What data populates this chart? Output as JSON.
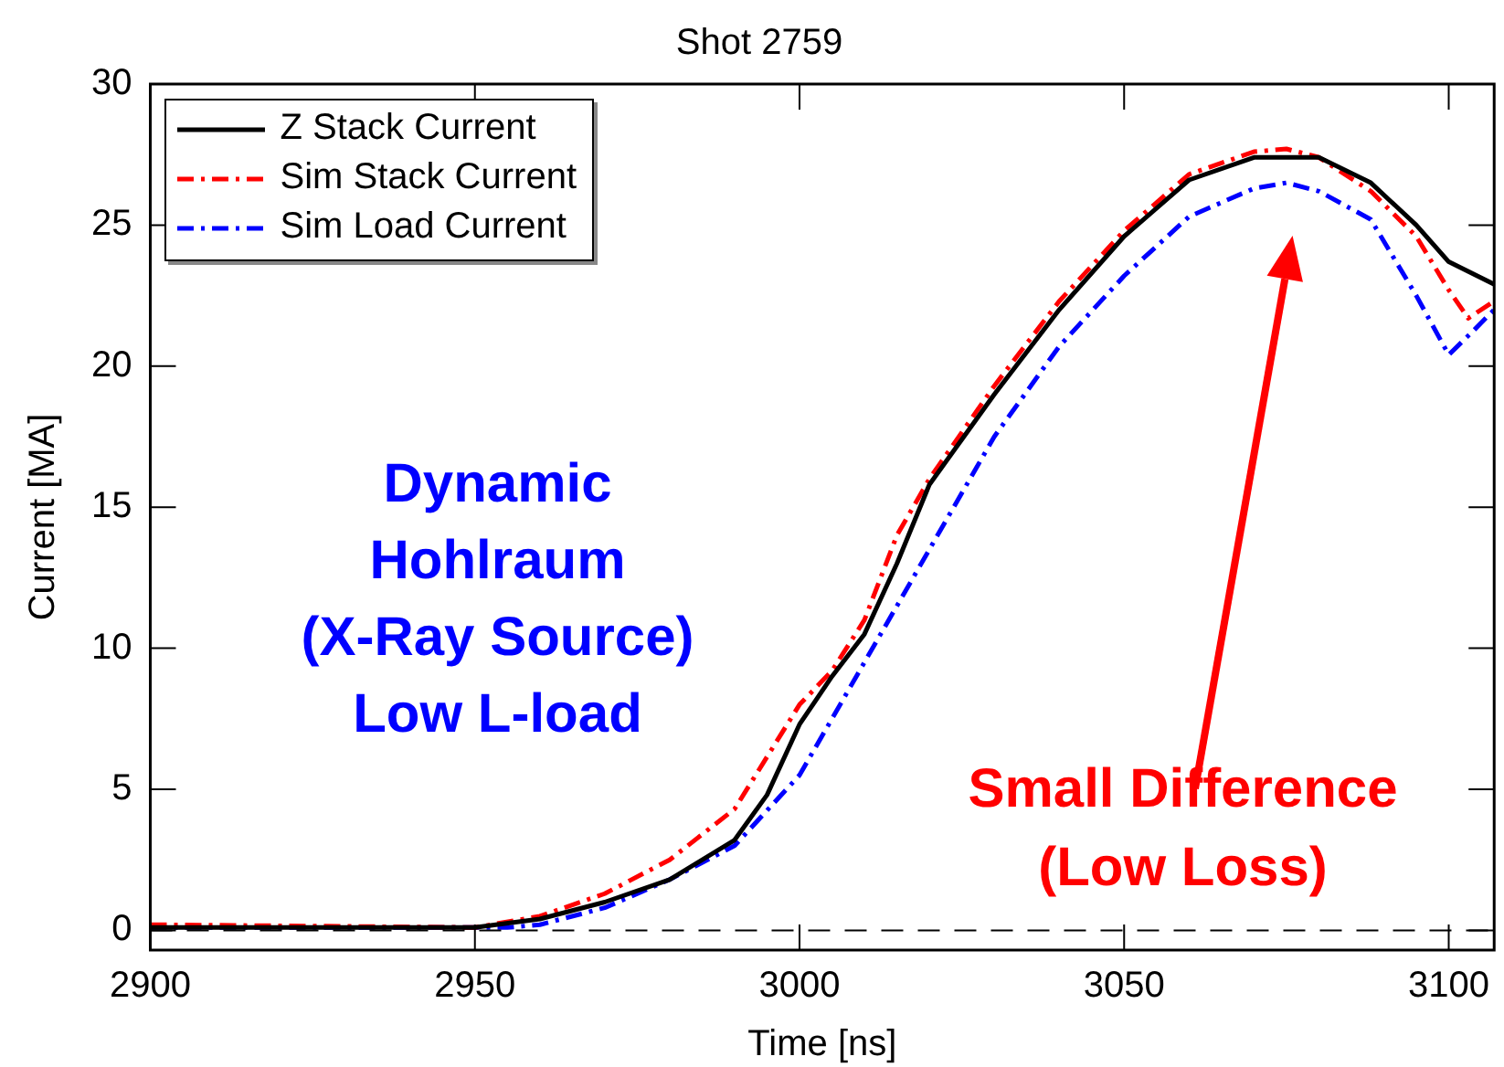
{
  "chart_data": {
    "type": "line",
    "title": "Shot 2759",
    "xlabel": "Time [ns]",
    "ylabel": "Current [MA]",
    "xlim": [
      2900,
      3107
    ],
    "xticks": [
      2900,
      2950,
      3000,
      3050,
      3100
    ],
    "ylim": [
      -0.7,
      30
    ],
    "yticks": [
      0,
      5,
      10,
      15,
      20,
      25,
      30
    ],
    "grid": false,
    "legend": "top left",
    "marker": "none",
    "ref_lines": [
      {
        "axis": "y",
        "value": 0,
        "color": "#000000",
        "line_style": "dashed"
      }
    ],
    "annotations": [
      "Dynamic Hohlraum (X-Ray Source) Low L-load",
      "Small Difference (Low Loss)"
    ],
    "series": [
      {
        "name": "Z Stack Current",
        "color": "#000000",
        "line_style": "solid",
        "x": [
          2900,
          2950,
          2960,
          2970,
          2980,
          2990,
          2995,
          3000,
          3005,
          3010,
          3015,
          3020,
          3030,
          3040,
          3050,
          3060,
          3070,
          3080,
          3088,
          3095,
          3100,
          3107
        ],
        "values": [
          0.1,
          0.1,
          0.4,
          1.0,
          1.8,
          3.2,
          4.8,
          7.3,
          9.0,
          10.5,
          13.0,
          15.8,
          19.0,
          22.0,
          24.6,
          26.6,
          27.4,
          27.4,
          26.5,
          25.0,
          23.7,
          22.9
        ]
      },
      {
        "name": "Sim Stack Current",
        "color": "#ff0000",
        "line_style": "dashed",
        "x": [
          2900,
          2950,
          2960,
          2970,
          2980,
          2990,
          3000,
          3005,
          3010,
          3015,
          3020,
          3030,
          3040,
          3050,
          3060,
          3070,
          3075,
          3080,
          3088,
          3095,
          3100,
          3103,
          3107
        ],
        "values": [
          0.2,
          0.1,
          0.5,
          1.3,
          2.5,
          4.3,
          8.0,
          9.2,
          11.0,
          14.0,
          16.0,
          19.3,
          22.3,
          24.8,
          26.8,
          27.6,
          27.7,
          27.4,
          26.2,
          24.6,
          22.7,
          21.7,
          22.3
        ]
      },
      {
        "name": "Sim Load Current",
        "color": "#0000ff",
        "line_style": "dashed",
        "x": [
          2900,
          2955,
          2960,
          2970,
          2980,
          2990,
          3000,
          3010,
          3020,
          3030,
          3040,
          3050,
          3060,
          3070,
          3075,
          3080,
          3088,
          3095,
          3100,
          3104,
          3107
        ],
        "values": [
          0.1,
          0.1,
          0.2,
          0.8,
          1.8,
          3.0,
          5.5,
          9.5,
          13.5,
          17.5,
          20.7,
          23.2,
          25.3,
          26.3,
          26.5,
          26.2,
          25.2,
          22.5,
          20.4,
          21.3,
          22.0
        ]
      }
    ]
  }
}
